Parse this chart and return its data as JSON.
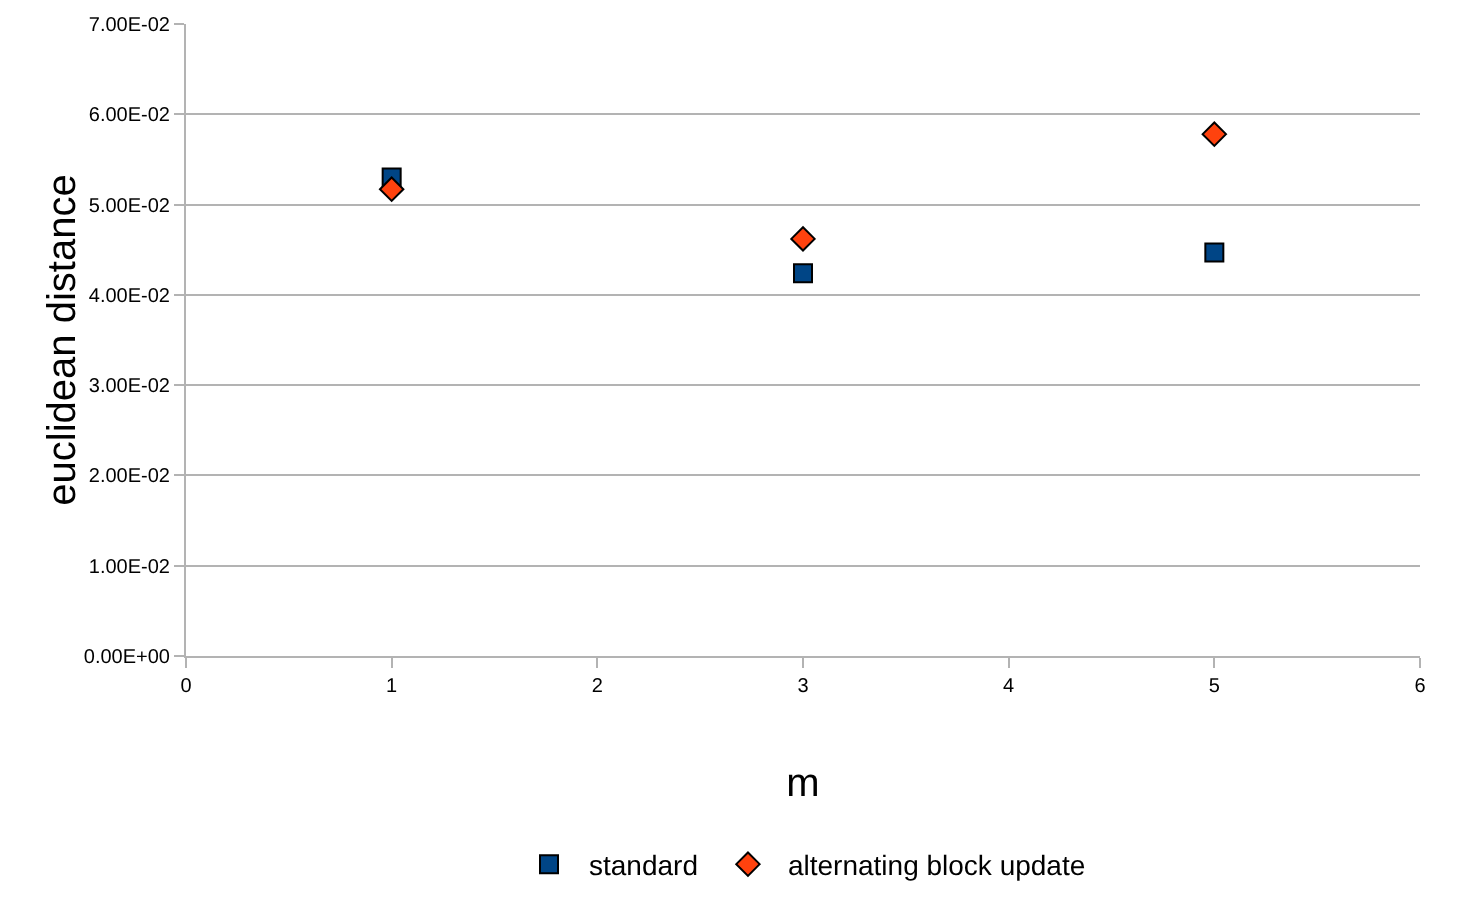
{
  "chart_data": {
    "type": "scatter",
    "xlabel": "m",
    "ylabel": "euclidean distance",
    "x": [
      1,
      3,
      5
    ],
    "series": [
      {
        "name": "standard",
        "color": "#004586",
        "marker": "square",
        "values": [
          0.053,
          0.0424,
          0.0447
        ]
      },
      {
        "name": "alternating block update",
        "color": "#ff420e",
        "marker": "diamond",
        "values": [
          0.0517,
          0.0462,
          0.0578
        ]
      }
    ],
    "xlim": [
      0,
      6
    ],
    "xticks": [
      0,
      1,
      2,
      3,
      4,
      5,
      6
    ],
    "ylim": [
      0,
      0.07
    ],
    "yticks": [
      {
        "value": 0,
        "label": "0.00E+00"
      },
      {
        "value": 0.01,
        "label": "1.00E-02"
      },
      {
        "value": 0.02,
        "label": "2.00E-02"
      },
      {
        "value": 0.03,
        "label": "3.00E-02"
      },
      {
        "value": 0.04,
        "label": "4.00E-02"
      },
      {
        "value": 0.05,
        "label": "5.00E-02"
      },
      {
        "value": 0.06,
        "label": "6.00E-02"
      },
      {
        "value": 0.07,
        "label": "7.00E-02"
      }
    ],
    "grid": "y",
    "legend": "bottom"
  }
}
